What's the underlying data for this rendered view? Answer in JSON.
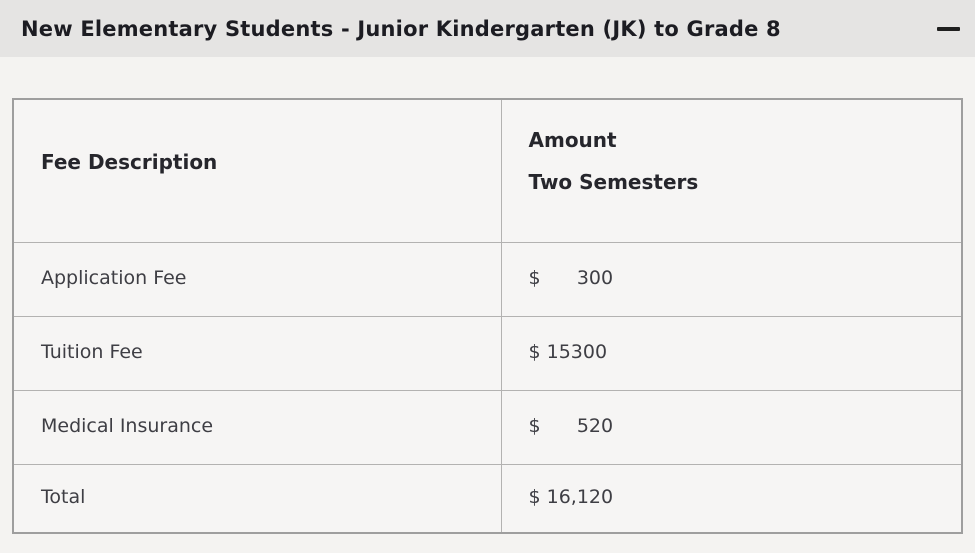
{
  "accordion": {
    "title": "New Elementary Students - Junior Kindergarten (JK) to Grade 8",
    "state": "expanded",
    "collapse_icon": "minus-icon"
  },
  "table": {
    "columns": [
      {
        "label": "Fee Description"
      },
      {
        "label_line1": "Amount",
        "label_line2": "Two Semesters"
      }
    ],
    "rows": [
      {
        "description": "Application Fee",
        "amount": "$      300"
      },
      {
        "description": "Tuition Fee",
        "amount": "$ 15300"
      },
      {
        "description": "Medical Insurance",
        "amount": "$      520"
      },
      {
        "description": "Total",
        "amount": "$ 16,120"
      }
    ]
  },
  "colors": {
    "header_band": "#e5e4e3",
    "body_background": "#f4f3f1",
    "cell_background": "#f6f5f4",
    "table_border_outer": "#9e9e9e",
    "table_border_inner": "#b3b2b1",
    "title_text": "#1c1c22",
    "cell_text": "#3e3e44"
  }
}
